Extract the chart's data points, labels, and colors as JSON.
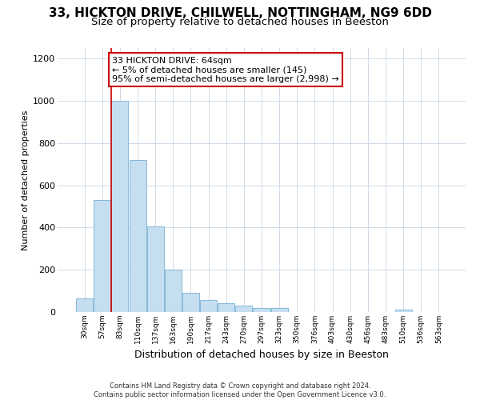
{
  "title1": "33, HICKTON DRIVE, CHILWELL, NOTTINGHAM, NG9 6DD",
  "title2": "Size of property relative to detached houses in Beeston",
  "xlabel": "Distribution of detached houses by size in Beeston",
  "ylabel": "Number of detached properties",
  "categories": [
    "30sqm",
    "57sqm",
    "83sqm",
    "110sqm",
    "137sqm",
    "163sqm",
    "190sqm",
    "217sqm",
    "243sqm",
    "270sqm",
    "297sqm",
    "323sqm",
    "350sqm",
    "376sqm",
    "403sqm",
    "430sqm",
    "456sqm",
    "483sqm",
    "510sqm",
    "536sqm",
    "563sqm"
  ],
  "values": [
    65,
    530,
    1000,
    720,
    405,
    200,
    90,
    58,
    40,
    30,
    20,
    20,
    0,
    0,
    0,
    0,
    0,
    0,
    10,
    0,
    0
  ],
  "bar_color": "#c5dff0",
  "bar_edge_color": "#7ab0d4",
  "vline_x": 1.5,
  "vline_color": "#cc0000",
  "annotation_text": "33 HICKTON DRIVE: 64sqm\n← 5% of detached houses are smaller (145)\n95% of semi-detached houses are larger (2,998) →",
  "annotation_box_color": "#ffffff",
  "annotation_box_edge": "#cc0000",
  "ylim": [
    0,
    1250
  ],
  "yticks": [
    0,
    200,
    400,
    600,
    800,
    1000,
    1200
  ],
  "footer": "Contains HM Land Registry data © Crown copyright and database right 2024.\nContains public sector information licensed under the Open Government Licence v3.0.",
  "bg_color": "#ffffff",
  "plot_bg_color": "#ffffff",
  "grid_color": "#d0dae8",
  "title1_fontsize": 11,
  "title2_fontsize": 9.5,
  "xlabel_fontsize": 9,
  "ylabel_fontsize": 8,
  "annot_fontsize": 8
}
